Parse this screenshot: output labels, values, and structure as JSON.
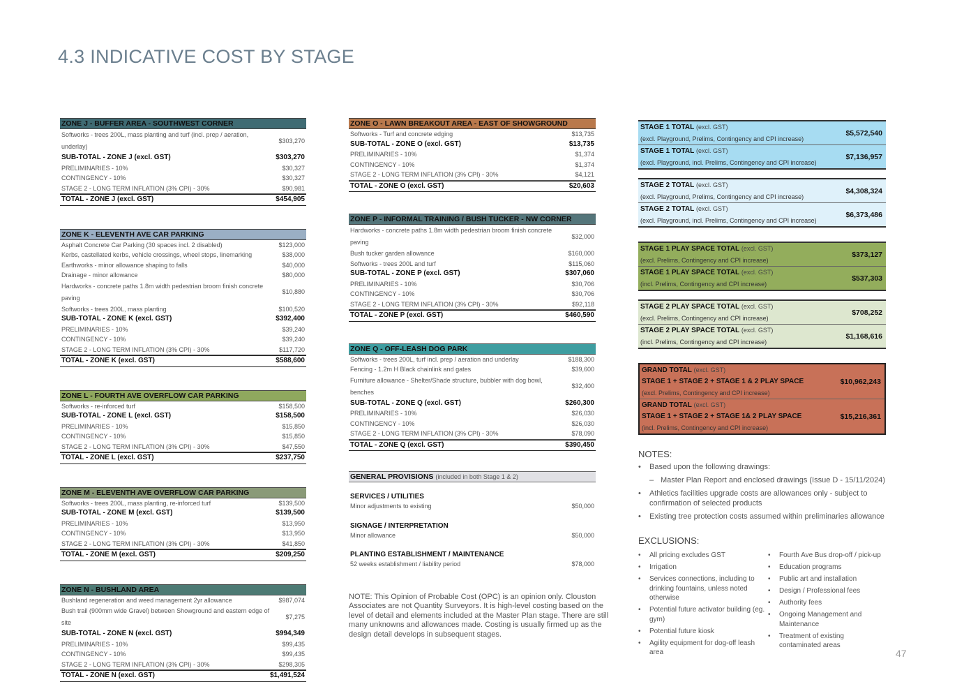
{
  "page": {
    "title": "4.3 INDICATIVE COST BY STAGE",
    "number": "47"
  },
  "colors": {
    "zone_j": "#3f6b73",
    "zone_k": "#9aafc4",
    "zone_l": "#8fa85e",
    "zone_m": "#8a9a78",
    "zone_n": "#4d7a74",
    "zone_o": "#b9794c",
    "zone_p": "#54757a",
    "zone_q": "#3e9da0",
    "stage_a": "#a7dcf2",
    "stage_b": "#dff1fa",
    "play_a": "#93ad5c",
    "play_b": "#dde7cf",
    "grand": "#c87158"
  },
  "zones": {
    "j": {
      "header": "ZONE J - BUFFER AREA - SOUTHWEST CORNER",
      "items": [
        {
          "desc": "Softworks - trees 200L, mass planting and turf (incl. prep / aeration, underlay)",
          "amt": "$303,270"
        }
      ],
      "subtotal": {
        "label": "SUB-TOTAL - ZONE J (excl. GST)",
        "amt": "$303,270"
      },
      "prelim": {
        "label": "PRELIMINARIES - 10%",
        "amt": "$30,327"
      },
      "contingency": {
        "label": "CONTINGENCY - 10%",
        "amt": "$30,327"
      },
      "inflation": {
        "label": "STAGE 2 - LONG TERM INFLATION (3% CPI) - 30%",
        "amt": "$90,981"
      },
      "total": {
        "label": "TOTAL - ZONE J (excl. GST)",
        "amt": "$454,905"
      }
    },
    "k": {
      "header": "ZONE K - ELEVENTH AVE CAR PARKING",
      "items": [
        {
          "desc": "Asphalt Concrete Car Parking (30 spaces incl. 2 disabled)",
          "amt": "$123,000"
        },
        {
          "desc": "Kerbs, castellated kerbs, vehicle crossings, wheel stops, linemarking",
          "amt": "$38,000"
        },
        {
          "desc": "Earthworks - minor allowance shaping to falls",
          "amt": "$40,000"
        },
        {
          "desc": "Drainage - minor allowance",
          "amt": "$80,000"
        },
        {
          "desc": "Hardworks - concrete paths 1.8m width pedestrian broom finish concrete paving",
          "amt": "$10,880"
        },
        {
          "desc": "Softworks - trees 200L, mass planting",
          "amt": "$100,520"
        }
      ],
      "subtotal": {
        "label": "SUB-TOTAL - ZONE K (excl. GST)",
        "amt": "$392,400"
      },
      "prelim": {
        "label": "PRELIMINARIES - 10%",
        "amt": "$39,240"
      },
      "contingency": {
        "label": "CONTINGENCY - 10%",
        "amt": "$39,240"
      },
      "inflation": {
        "label": "STAGE 2 - LONG TERM INFLATION (3% CPI) - 30%",
        "amt": "$117,720"
      },
      "total": {
        "label": "TOTAL - ZONE K (excl. GST)",
        "amt": "$588,600"
      }
    },
    "l": {
      "header": "ZONE L - FOURTH AVE OVERFLOW CAR PARKING",
      "items": [
        {
          "desc": "Softworks - re-inforced turf",
          "amt": "$158,500"
        }
      ],
      "subtotal": {
        "label": "SUB-TOTAL - ZONE L (excl. GST)",
        "amt": "$158,500"
      },
      "prelim": {
        "label": "PRELIMINARIES - 10%",
        "amt": "$15,850"
      },
      "contingency": {
        "label": "CONTINGENCY - 10%",
        "amt": "$15,850"
      },
      "inflation": {
        "label": "STAGE 2 - LONG TERM INFLATION (3% CPI) - 30%",
        "amt": "$47,550"
      },
      "total": {
        "label": "TOTAL - ZONE L (excl. GST)",
        "amt": "$237,750"
      }
    },
    "m": {
      "header": "ZONE M - ELEVENTH AVE OVERFLOW CAR PARKING",
      "items": [
        {
          "desc": "Softworks - trees 200L, mass planting, re-inforced turf",
          "amt": "$139,500"
        }
      ],
      "subtotal": {
        "label": "SUB-TOTAL - ZONE M (excl. GST)",
        "amt": "$139,500"
      },
      "prelim": {
        "label": "PRELIMINARIES - 10%",
        "amt": "$13,950"
      },
      "contingency": {
        "label": "CONTINGENCY - 10%",
        "amt": "$13,950"
      },
      "inflation": {
        "label": "STAGE 2 - LONG TERM INFLATION (3% CPI) - 30%",
        "amt": "$41,850"
      },
      "total": {
        "label": "TOTAL - ZONE M (excl. GST)",
        "amt": "$209,250"
      }
    },
    "n": {
      "header": "ZONE N - BUSHLAND AREA",
      "items": [
        {
          "desc": "Bushland regeneration and weed management 2yr allowance",
          "amt": "$987,074"
        },
        {
          "desc": "Bush trail (900mm wide Gravel) between Showground and eastern edge of site",
          "amt": "$7,275"
        }
      ],
      "subtotal": {
        "label": "SUB-TOTAL - ZONE N (excl. GST)",
        "amt": "$994,349"
      },
      "prelim": {
        "label": "PRELIMINARIES - 10%",
        "amt": "$99,435"
      },
      "contingency": {
        "label": "CONTINGENCY - 10%",
        "amt": "$99,435"
      },
      "inflation": {
        "label": "STAGE 2 - LONG TERM INFLATION (3% CPI) - 30%",
        "amt": "$298,305"
      },
      "total": {
        "label": "TOTAL - ZONE N (excl. GST)",
        "amt": "$1,491,524"
      }
    },
    "o": {
      "header": "ZONE O - LAWN BREAKOUT AREA - EAST OF SHOWGROUND",
      "items": [
        {
          "desc": "Softworks - Turf and concrete edging",
          "amt": "$13,735"
        }
      ],
      "subtotal": {
        "label": "SUB-TOTAL - ZONE O (excl. GST)",
        "amt": "$13,735"
      },
      "prelim": {
        "label": "PRELIMINARIES - 10%",
        "amt": "$1,374"
      },
      "contingency": {
        "label": "CONTINGENCY - 10%",
        "amt": "$1,374"
      },
      "inflation": {
        "label": "STAGE 2 - LONG TERM INFLATION (3% CPI) - 30%",
        "amt": "$4,121"
      },
      "total": {
        "label": "TOTAL - ZONE O (excl. GST)",
        "amt": "$20,603"
      }
    },
    "p": {
      "header": "ZONE P - INFORMAL TRAINING / BUSH TUCKER - NW CORNER",
      "items": [
        {
          "desc": "Hardworks - concrete paths 1.8m width pedestrian broom finish concrete paving",
          "amt": "$32,000"
        },
        {
          "desc": "Bush tucker garden allowance",
          "amt": "$160,000"
        },
        {
          "desc": "Softworks - trees 200L and turf",
          "amt": "$115,060"
        }
      ],
      "subtotal": {
        "label": "SUB-TOTAL - ZONE P (excl. GST)",
        "amt": "$307,060"
      },
      "prelim": {
        "label": "PRELIMINARIES - 10%",
        "amt": "$30,706"
      },
      "contingency": {
        "label": "CONTINGENCY - 10%",
        "amt": "$30,706"
      },
      "inflation": {
        "label": "STAGE 2 - LONG TERM INFLATION (3% CPI) - 30%",
        "amt": "$92,118"
      },
      "total": {
        "label": "TOTAL - ZONE P (excl. GST)",
        "amt": "$460,590"
      }
    },
    "q": {
      "header": "ZONE Q - OFF-LEASH DOG PARK",
      "items": [
        {
          "desc": "Softworks - trees 200L, turf incl. prep / aeration and underlay",
          "amt": "$188,300"
        },
        {
          "desc": "Fencing - 1.2m H Black chainlink and gates",
          "amt": "$39,600"
        },
        {
          "desc": "Furniture allowance - Shelter/Shade structure, bubbler with dog bowl, benches",
          "amt": "$32,400"
        }
      ],
      "subtotal": {
        "label": "SUB-TOTAL - ZONE Q (excl. GST)",
        "amt": "$260,300"
      },
      "prelim": {
        "label": "PRELIMINARIES - 10%",
        "amt": "$26,030"
      },
      "contingency": {
        "label": "CONTINGENCY - 10%",
        "amt": "$26,030"
      },
      "inflation": {
        "label": "STAGE 2 - LONG TERM INFLATION (3% CPI) - 30%",
        "amt": "$78,090"
      },
      "total": {
        "label": "TOTAL - ZONE Q (excl. GST)",
        "amt": "$390,450"
      }
    }
  },
  "general": {
    "header": "GENERAL PROVISIONS",
    "header_note": "(included in both Stage 1 & 2)",
    "items": [
      {
        "title": "SERVICES / UTILITIES",
        "desc": "Minor adjustments to existing",
        "amt": "$50,000"
      },
      {
        "title": "SIGNAGE / INTERPRETATION",
        "desc": "Minor allowance",
        "amt": "$50,000"
      },
      {
        "title": "PLANTING ESTABLISHMENT / MAINTENANCE",
        "desc": "52 weeks establishment / liability period",
        "amt": "$78,000"
      }
    ]
  },
  "opc_note": "NOTE: This Opinion of Probable Cost (OPC) is an opinion only. Clouston Associates are not Quantity Surveyors. It is high-level costing based on the level of detail and elements included at the Master Plan stage. There are still many unknowns and allowances made. Costing is usually firmed up as the design detail develops in subsequent stages.",
  "totals": {
    "excl_gst": "(excl. GST)",
    "stage1": [
      {
        "label": "STAGE 1 TOTAL",
        "note": "(excl. Playground, Prelims, Contingency and CPI increase)",
        "amt": "$5,572,540"
      },
      {
        "label": "STAGE 1 TOTAL",
        "note": "(excl. Playground, incl. Prelims, Contingency and CPI increase)",
        "amt": "$7,136,957"
      }
    ],
    "stage2": [
      {
        "label": "STAGE 2 TOTAL",
        "note": "(excl. Playground, Prelims, Contingency and CPI increase)",
        "amt": "$4,308,324"
      },
      {
        "label": "STAGE 2 TOTAL",
        "note": "(excl. Playground, incl. Prelims, Contingency and CPI increase)",
        "amt": "$6,373,486"
      }
    ],
    "play1": [
      {
        "label": "STAGE 1 PLAY SPACE TOTAL",
        "note": "(excl. Prelims, Contingency and CPI increase)",
        "amt": "$373,127"
      },
      {
        "label": "STAGE 1 PLAY SPACE TOTAL",
        "note": "(incl. Prelims, Contingency and CPI increase)",
        "amt": "$537,303"
      }
    ],
    "play2": [
      {
        "label": "STAGE 2 PLAY SPACE TOTAL",
        "note": "(excl. Prelims, Contingency and CPI increase)",
        "amt": "$708,252"
      },
      {
        "label": "STAGE 2 PLAY SPACE TOTAL",
        "note": "(incl. Prelims, Contingency and CPI increase)",
        "amt": "$1,168,616"
      }
    ],
    "grand": [
      {
        "label": "GRAND TOTAL",
        "sub": "STAGE 1 + STAGE 2 + STAGE 1 & 2 PLAY SPACE",
        "note": "(excl. Prelims, Contingency and CPI increase)",
        "amt": "$10,962,243"
      },
      {
        "label": "GRAND TOTAL",
        "sub": "STAGE 1 + STAGE 2 + STAGE 1& 2 PLAY SPACE",
        "note": "(incl. Prelims, Contingency and CPI increase)",
        "amt": "$15,216,361"
      }
    ]
  },
  "notes": {
    "heading": "NOTES:",
    "items": [
      "Based upon the following drawings:",
      "Master Plan Report and enclosed drawings (Issue D - 15/11/2024)",
      "Athletics facilities upgrade costs are allowances only - subject to confirmation of selected products",
      "Existing tree protection costs assumed within preliminaries allowance"
    ]
  },
  "exclusions": {
    "heading": "EXCLUSIONS:",
    "left": [
      "All pricing excludes GST",
      "Irrigation",
      "Services connections, including to drinking fountains, unless noted otherwise",
      "Potential future activator building (eg. gym)",
      "Potential future kiosk",
      "Agility equipment for dog-off leash area"
    ],
    "right": [
      "Fourth Ave Bus drop-off / pick-up",
      "Education programs",
      "Public art and installation",
      "Design / Professional fees",
      "Authority fees",
      "Ongoing Management and Maintenance",
      "Treatment of existing contaminated areas"
    ]
  }
}
